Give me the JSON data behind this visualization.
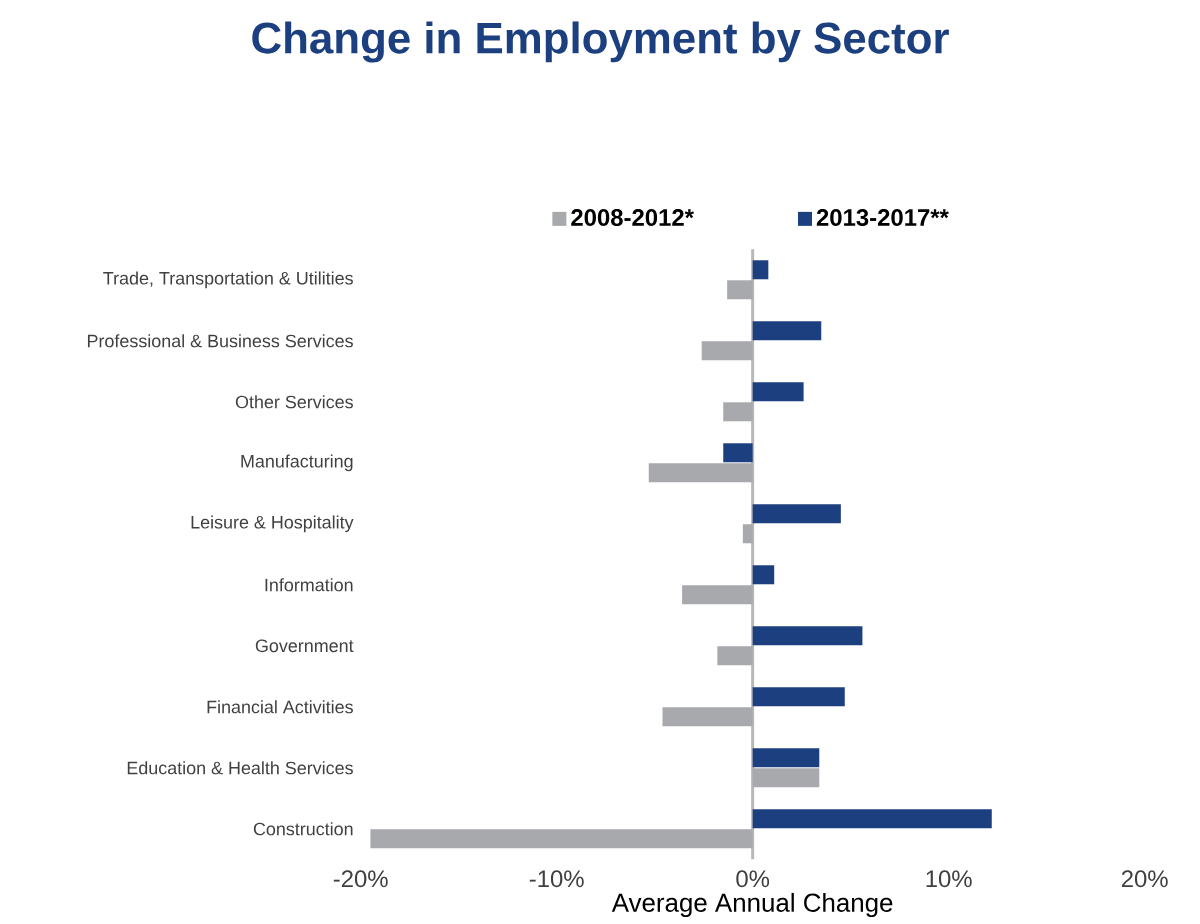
{
  "chart_data": {
    "type": "bar",
    "orientation": "horizontal",
    "title": "Change in Employment by Sector",
    "xlabel": "Average Annual Change",
    "categories": [
      "Trade, Transportation & Utilities",
      "Professional & Business Services",
      "Other Services",
      "Manufacturing",
      "Leisure & Hospitality",
      "Information",
      "Government",
      "Financial Activities",
      "Education & Health Services",
      "Construction"
    ],
    "series": [
      {
        "name": "2008-2012*",
        "color": "#a7a9ac",
        "values": [
          -1.3,
          -2.6,
          -1.5,
          -5.3,
          -0.5,
          -3.6,
          -1.8,
          -4.6,
          3.4,
          -19.5
        ]
      },
      {
        "name": "2013-2017**",
        "color": "#1c3f7f",
        "values": [
          0.8,
          3.5,
          2.6,
          -1.5,
          4.5,
          1.1,
          5.6,
          4.7,
          3.4,
          12.2
        ]
      }
    ],
    "xlim": [
      -20,
      20
    ],
    "xticks": [
      {
        "value": -20,
        "label": "-20%"
      },
      {
        "value": -10,
        "label": "-10%"
      },
      {
        "value": 0,
        "label": "0%"
      },
      {
        "value": 10,
        "label": "10%"
      },
      {
        "value": 20,
        "label": "20%"
      }
    ],
    "ref_lines": [
      {
        "axis": "x",
        "value": 0,
        "color": "#b8b8b8"
      }
    ],
    "legend": "top",
    "grid": false
  }
}
